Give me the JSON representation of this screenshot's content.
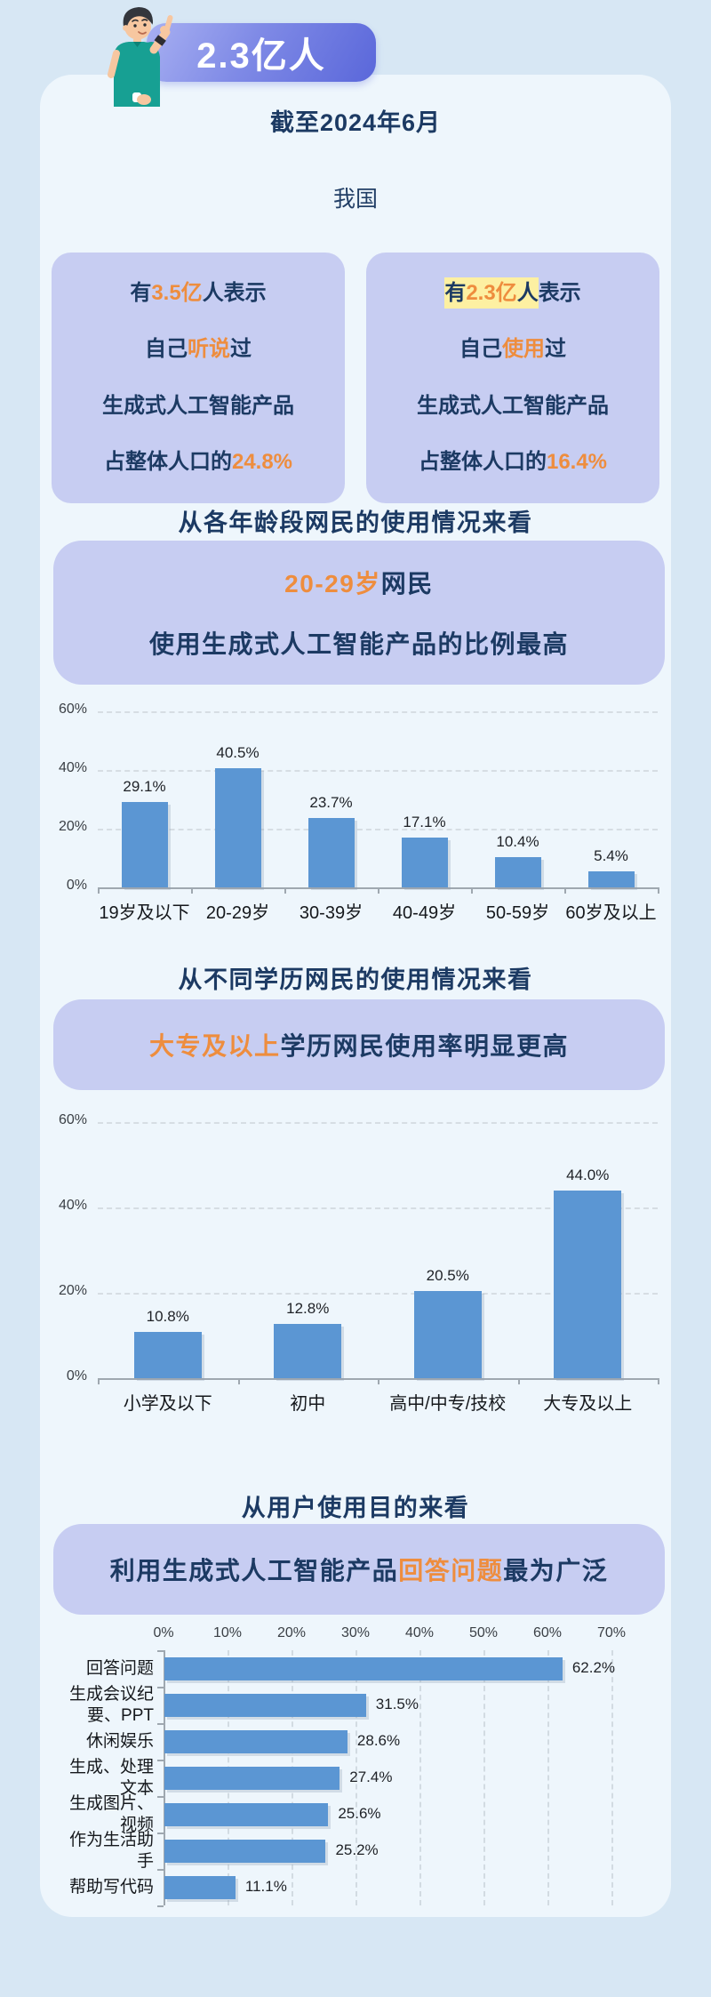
{
  "colors": {
    "page_bg": "#d7e7f4",
    "card_bg": "#eef6fc",
    "lavender_box": "#c7cdf2",
    "navy_text": "#1c3a63",
    "accent_orange": "#ee8d3e",
    "yellow_highlight": "#fdf0a2",
    "bar_blue": "#5b96d3",
    "banner_gradient_start": "#a8b0f2",
    "banner_gradient_end": "#5a67da",
    "banner_text": "#ffffff",
    "gridline": "#d6dde3",
    "axis": "#9fa8b0"
  },
  "header": {
    "badge": "2.3亿人",
    "illustration": "man-pointing-illustration",
    "date_line": "截至2024年6月",
    "intro": "我国"
  },
  "stat_cards": [
    {
      "lines": [
        [
          {
            "t": "有"
          },
          {
            "t": "3.5亿",
            "c": "orange"
          },
          {
            "t": "人表示"
          }
        ],
        [
          {
            "t": "自己"
          },
          {
            "t": "听说",
            "c": "orange"
          },
          {
            "t": "过"
          }
        ],
        [
          {
            "t": "生成式人工智能产品"
          }
        ],
        [
          {
            "t": "占整体人口的"
          },
          {
            "t": "24.8%",
            "c": "orange"
          }
        ]
      ]
    },
    {
      "lines": [
        [
          {
            "t": "有",
            "c": "hl"
          },
          {
            "t": "2.3亿",
            "c": "orange hl"
          },
          {
            "t": "人",
            "c": "hl"
          },
          {
            "t": "表示"
          }
        ],
        [
          {
            "t": "自己"
          },
          {
            "t": "使用",
            "c": "orange"
          },
          {
            "t": "过"
          }
        ],
        [
          {
            "t": "生成式人工智能产品"
          }
        ],
        [
          {
            "t": "占整体人口的"
          },
          {
            "t": "16.4%",
            "c": "orange"
          }
        ]
      ]
    }
  ],
  "sections": [
    {
      "heading": "从各年龄段网民的使用情况来看",
      "callout_lines": [
        [
          {
            "t": "20-29岁",
            "c": "orange"
          },
          {
            "t": "网民"
          }
        ],
        [
          {
            "t": "使用生成式人工智能产品的比例最高"
          }
        ]
      ]
    },
    {
      "heading": "从不同学历网民的使用情况来看",
      "callout_lines": [
        [
          {
            "t": "大专及以上",
            "c": "orange"
          },
          {
            "t": "学历网民使用率明显更高"
          }
        ]
      ]
    },
    {
      "heading": "从用户使用目的来看",
      "callout_lines": [
        [
          {
            "t": "利用生成式人工智能产品"
          },
          {
            "t": "回答问题",
            "c": "orange"
          },
          {
            "t": "最为广泛"
          }
        ]
      ]
    }
  ],
  "chart_data": [
    {
      "type": "bar",
      "categories": [
        "19岁及以下",
        "20-29岁",
        "30-39岁",
        "40-49岁",
        "50-59岁",
        "60岁及以上"
      ],
      "values": [
        29.1,
        40.5,
        23.7,
        17.1,
        10.4,
        5.4
      ],
      "value_labels": [
        "29.1%",
        "40.5%",
        "23.7%",
        "17.1%",
        "10.4%",
        "5.4%"
      ],
      "yticks": [
        "0%",
        "20%",
        "40%",
        "60%"
      ],
      "ylim": [
        0,
        60
      ],
      "grid": "dashed-horizontal",
      "legend": "none"
    },
    {
      "type": "bar",
      "categories": [
        "小学及以下",
        "初中",
        "高中/中专/技校",
        "大专及以上"
      ],
      "values": [
        10.8,
        12.8,
        20.5,
        44.0
      ],
      "value_labels": [
        "10.8%",
        "12.8%",
        "20.5%",
        "44.0%"
      ],
      "yticks": [
        "0%",
        "20%",
        "40%",
        "60%"
      ],
      "ylim": [
        0,
        60
      ],
      "grid": "dashed-horizontal",
      "legend": "none"
    },
    {
      "type": "hbar",
      "categories": [
        "回答问题",
        "生成会议纪要、PPT",
        "休闲娱乐",
        "生成、处理文本",
        "生成图片、视频",
        "作为生活助手",
        "帮助写代码"
      ],
      "values": [
        62.2,
        31.5,
        28.6,
        27.4,
        25.6,
        25.2,
        11.1
      ],
      "value_labels": [
        "62.2%",
        "31.5%",
        "28.6%",
        "27.4%",
        "25.6%",
        "25.2%",
        "11.1%"
      ],
      "xticks": [
        "0%",
        "10%",
        "20%",
        "30%",
        "40%",
        "50%",
        "60%",
        "70%"
      ],
      "xlim": [
        0,
        70
      ],
      "grid": "dashed-vertical",
      "legend": "none"
    }
  ]
}
